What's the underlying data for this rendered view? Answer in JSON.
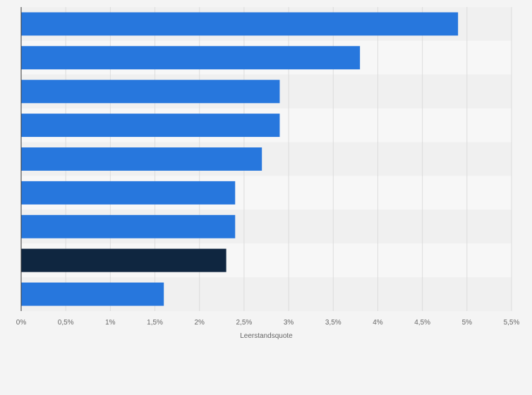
{
  "chart_data": {
    "type": "bar",
    "orientation": "horizontal",
    "categories": [
      "",
      "",
      "",
      "",
      "",
      "",
      "",
      "",
      ""
    ],
    "series": [
      {
        "values": [
          4.9,
          3.8,
          2.9,
          2.9,
          2.7,
          2.4,
          2.4,
          2.3,
          1.6
        ]
      }
    ],
    "highlight_index": 7,
    "xlabel": "Leerstandsquote",
    "ylabel": "",
    "xlim": [
      0,
      5.5
    ],
    "ticks": [
      0,
      0.5,
      1,
      1.5,
      2,
      2.5,
      3,
      3.5,
      4,
      4.5,
      5,
      5.5
    ],
    "tick_labels": [
      "0%",
      "0,5%",
      "1%",
      "1,5%",
      "2%",
      "2,5%",
      "3%",
      "3,5%",
      "4%",
      "4,5%",
      "5%",
      "5,5%"
    ],
    "grid": true,
    "legend": "none",
    "colors": {
      "bar": "#2777dd",
      "highlight": "#0f2640",
      "grid": "#dcdcdc",
      "band_dark": "#f0f0f0",
      "band_light": "#f7f7f7",
      "axis": "#333333"
    }
  }
}
